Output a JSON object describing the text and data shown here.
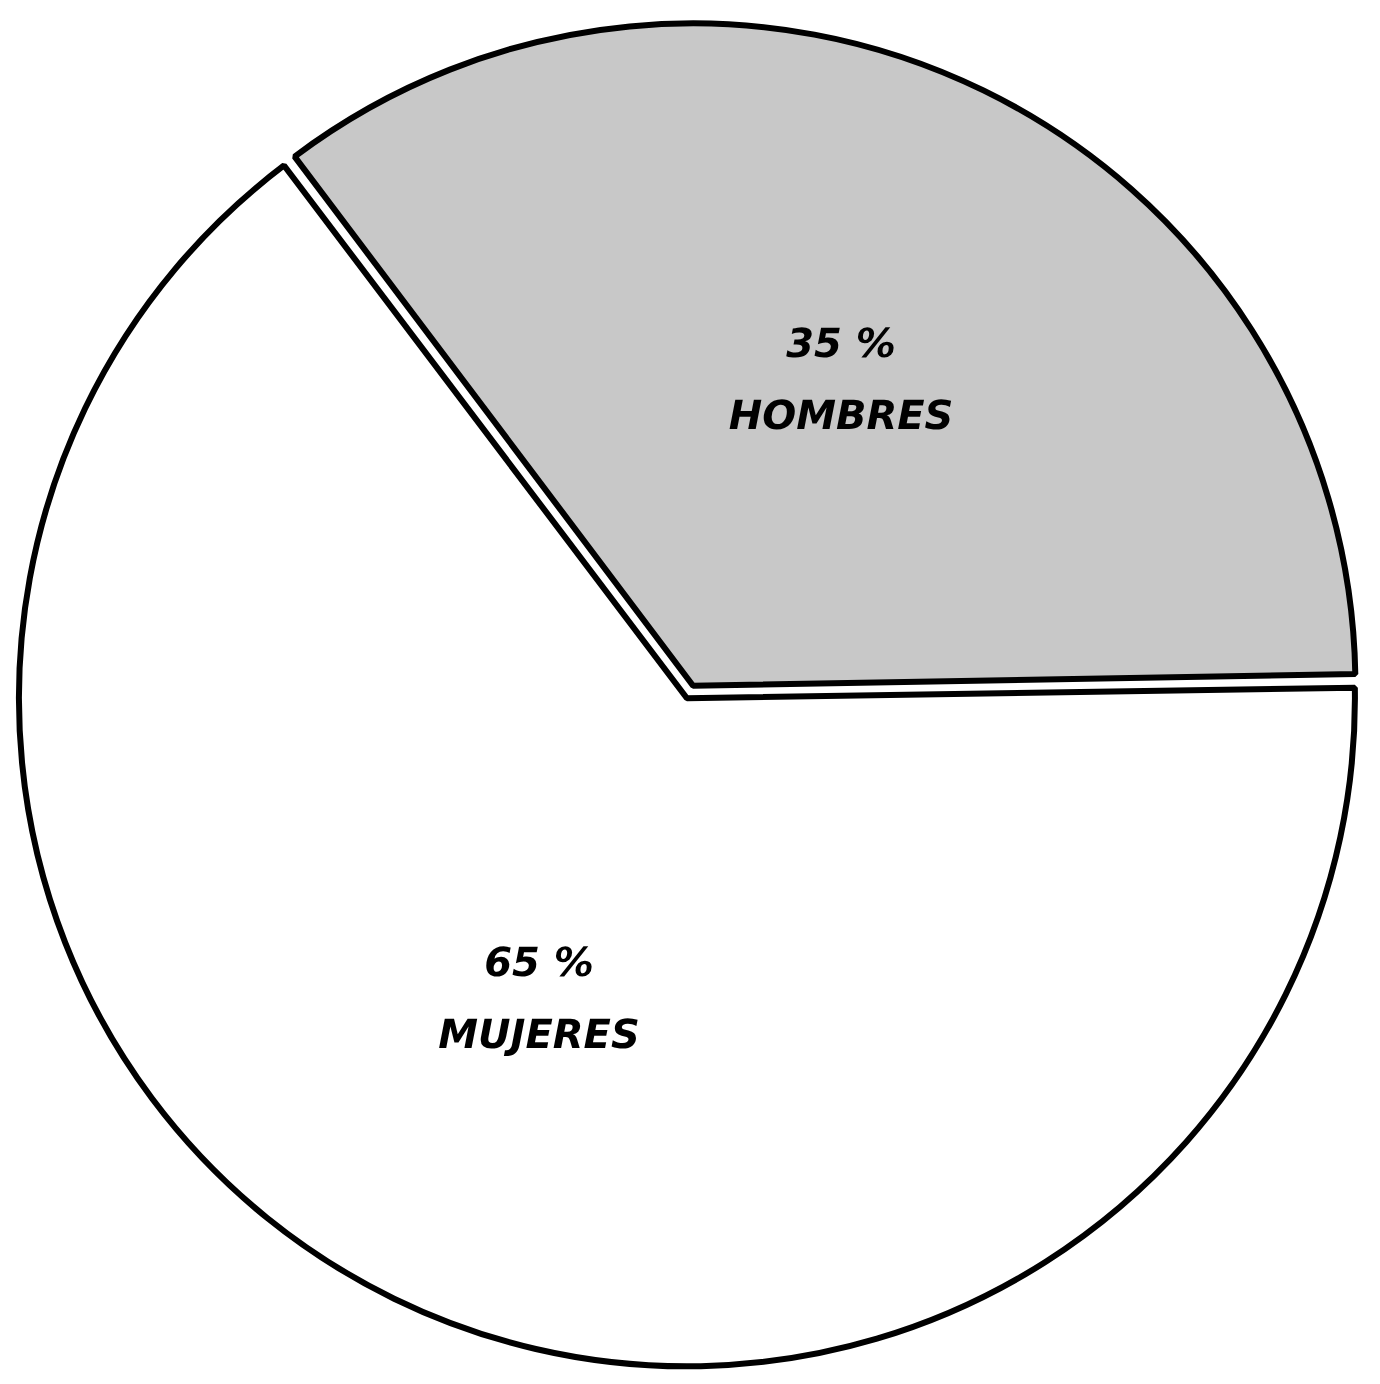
{
  "chart_data": {
    "type": "pie",
    "categories": [
      "HOMBRES",
      "MUJERES"
    ],
    "values": [
      35,
      65
    ],
    "colors": [
      "#c8c8c8",
      "#ffffff"
    ],
    "value_labels": [
      "35 %",
      "65 %"
    ],
    "legend": false
  }
}
